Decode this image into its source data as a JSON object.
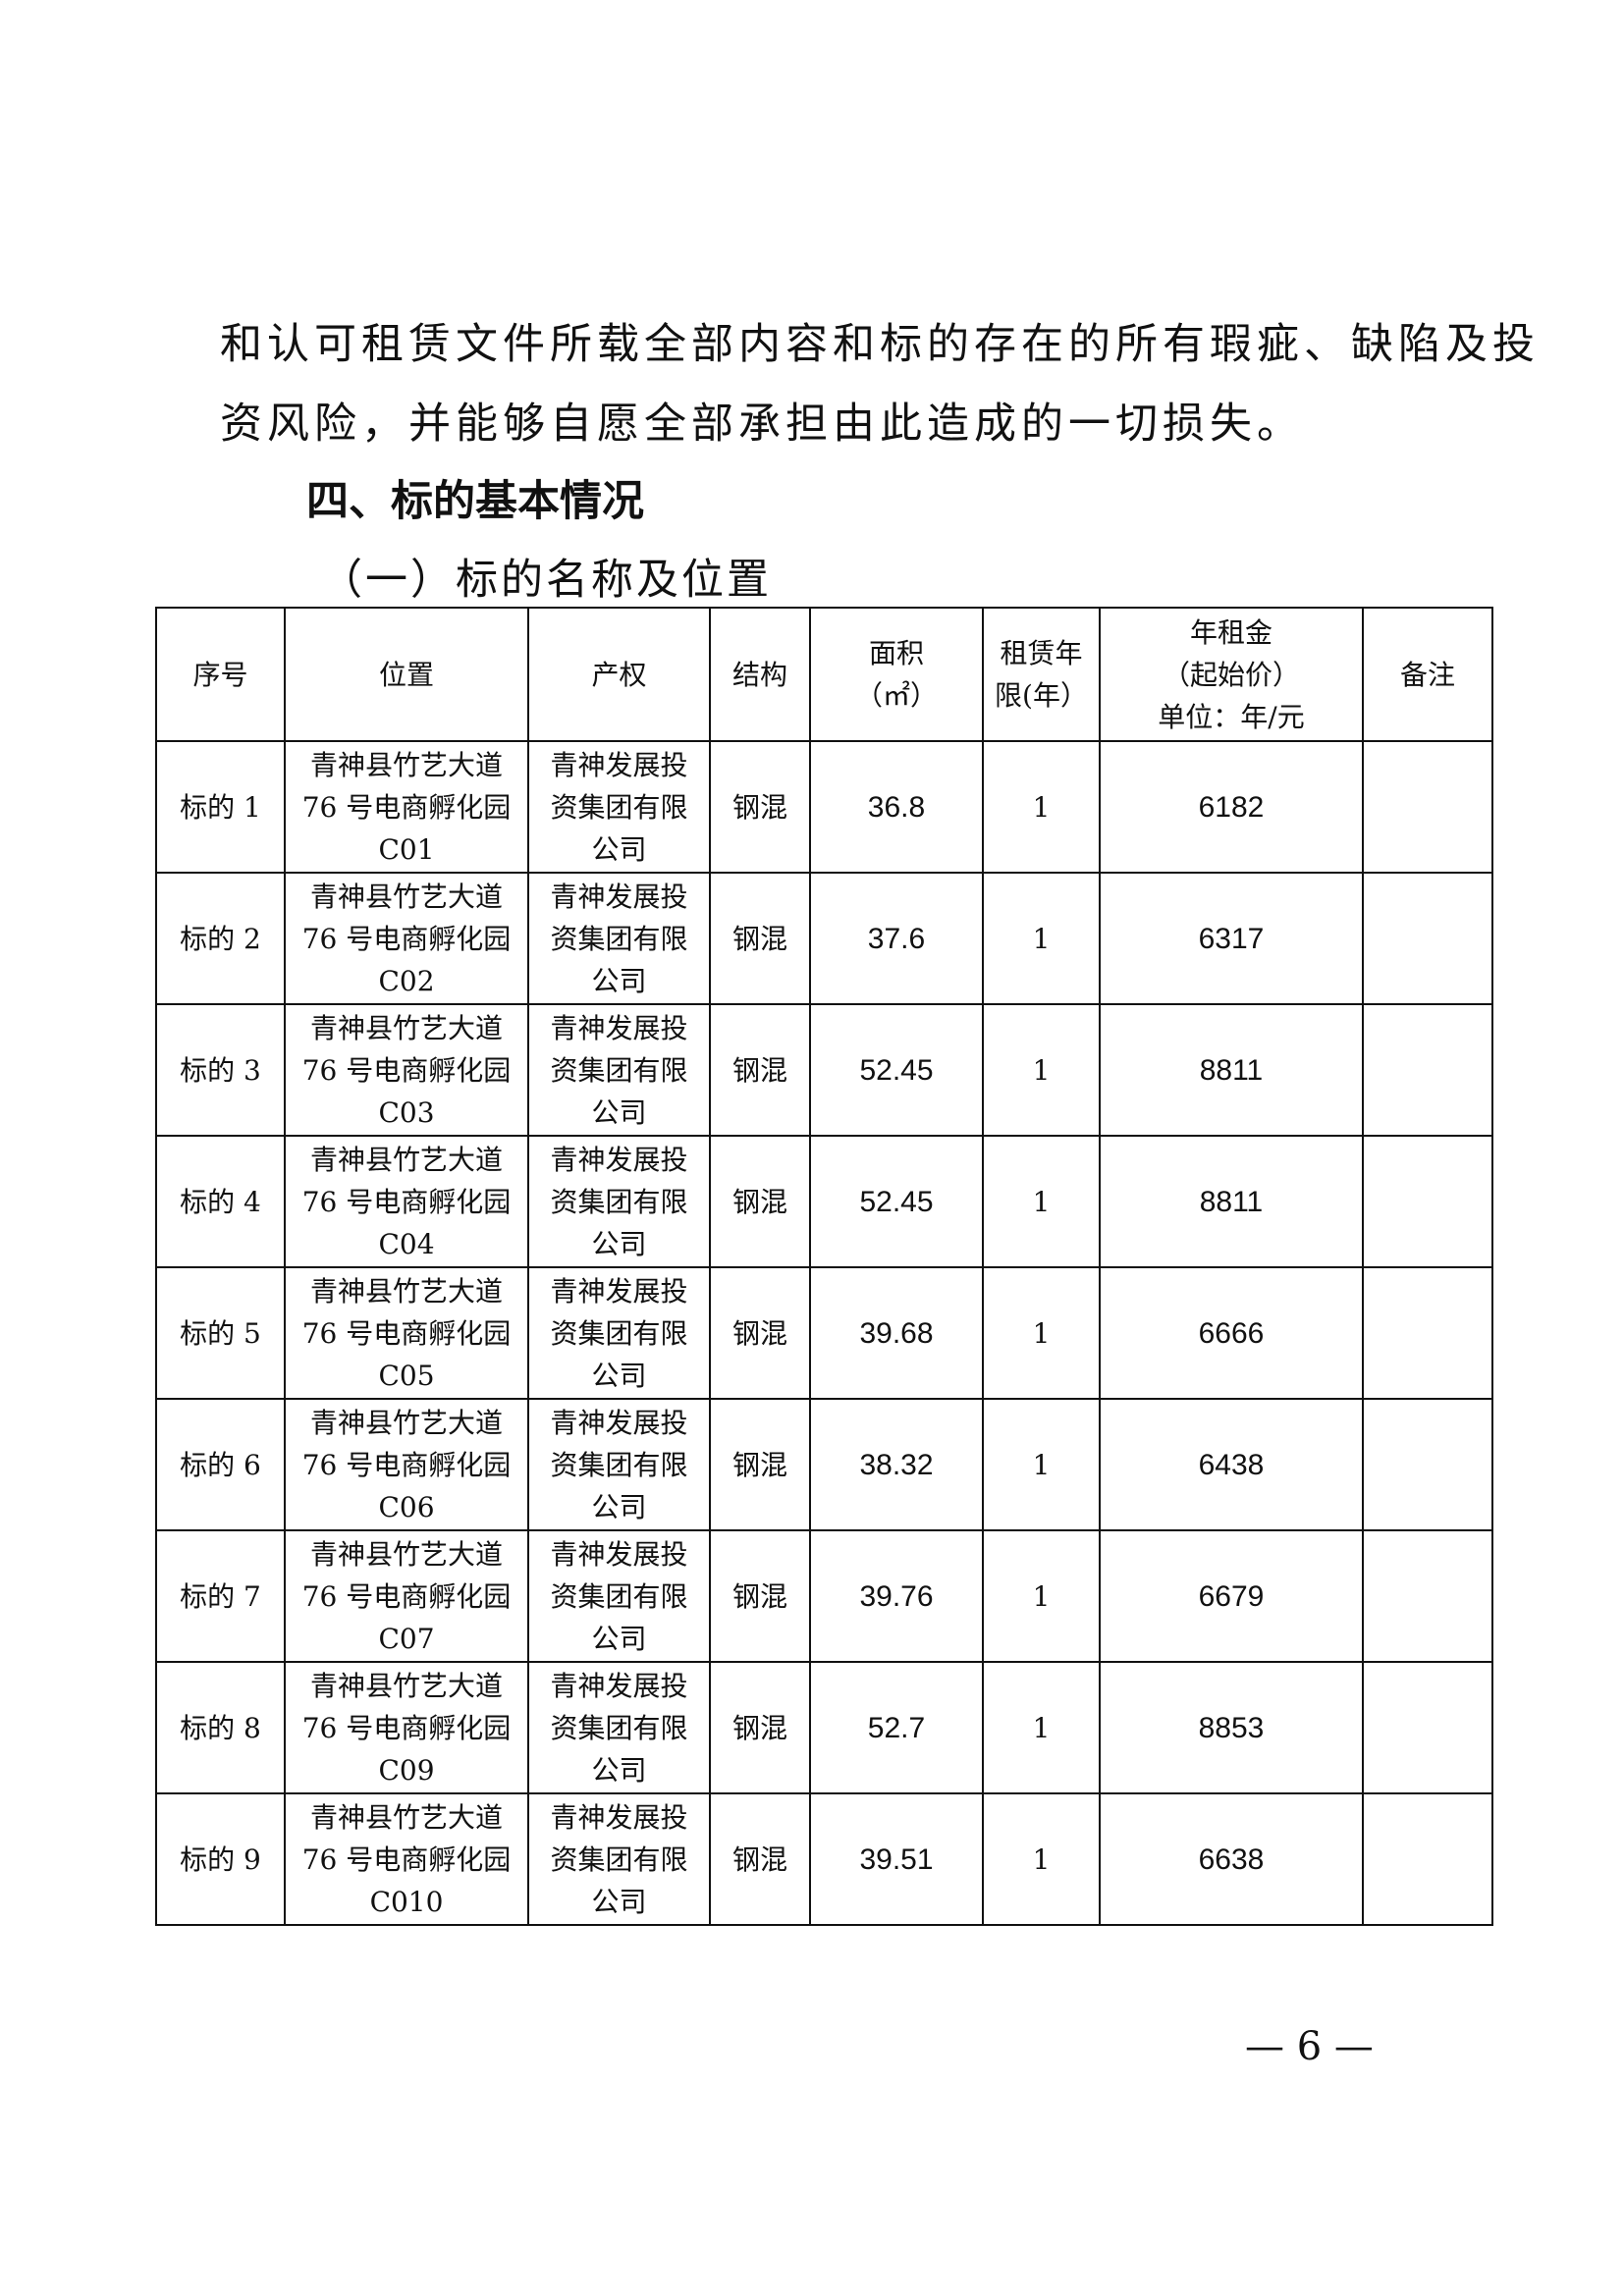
{
  "paragraph": {
    "line1": "和认可租赁文件所载全部内容和标的存在的所有瑕疵、缺陷及投",
    "line2": "资风险，并能够自愿全部承担由此造成的一切损失。"
  },
  "section_heading": "四、标的基本情况",
  "subsection_heading": "（一）标的名称及位置",
  "table": {
    "headers": [
      "序号",
      "位置",
      "产权",
      "结构",
      "面积（㎡）",
      "租赁年限(年）",
      "年租金（起始价）单位：年/元",
      "备注"
    ],
    "header_lines": {
      "area": [
        "面积",
        "（㎡）"
      ],
      "term": [
        "租赁年",
        "限(年）"
      ],
      "rent": [
        "年租金",
        "（起始价）",
        "单位：年/元"
      ]
    },
    "rows": [
      {
        "id": "标的 1",
        "loc": [
          "青神县竹艺大道",
          "76 号电商孵化园",
          "C01"
        ],
        "owner": [
          "青神发展投",
          "资集团有限",
          "公司"
        ],
        "structure": "钢混",
        "area": "36.8",
        "term": "1",
        "rent": "6182",
        "note": ""
      },
      {
        "id": "标的 2",
        "loc": [
          "青神县竹艺大道",
          "76 号电商孵化园",
          "C02"
        ],
        "owner": [
          "青神发展投",
          "资集团有限",
          "公司"
        ],
        "structure": "钢混",
        "area": "37.6",
        "term": "1",
        "rent": "6317",
        "note": ""
      },
      {
        "id": "标的 3",
        "loc": [
          "青神县竹艺大道",
          "76 号电商孵化园",
          "C03"
        ],
        "owner": [
          "青神发展投",
          "资集团有限",
          "公司"
        ],
        "structure": "钢混",
        "area": "52.45",
        "term": "1",
        "rent": "8811",
        "note": ""
      },
      {
        "id": "标的 4",
        "loc": [
          "青神县竹艺大道",
          "76 号电商孵化园",
          "C04"
        ],
        "owner": [
          "青神发展投",
          "资集团有限",
          "公司"
        ],
        "structure": "钢混",
        "area": "52.45",
        "term": "1",
        "rent": "8811",
        "note": ""
      },
      {
        "id": "标的 5",
        "loc": [
          "青神县竹艺大道",
          "76 号电商孵化园",
          "C05"
        ],
        "owner": [
          "青神发展投",
          "资集团有限",
          "公司"
        ],
        "structure": "钢混",
        "area": "39.68",
        "term": "1",
        "rent": "6666",
        "note": ""
      },
      {
        "id": "标的 6",
        "loc": [
          "青神县竹艺大道",
          "76 号电商孵化园",
          "C06"
        ],
        "owner": [
          "青神发展投",
          "资集团有限",
          "公司"
        ],
        "structure": "钢混",
        "area": "38.32",
        "term": "1",
        "rent": "6438",
        "note": ""
      },
      {
        "id": "标的 7",
        "loc": [
          "青神县竹艺大道",
          "76 号电商孵化园",
          "C07"
        ],
        "owner": [
          "青神发展投",
          "资集团有限",
          "公司"
        ],
        "structure": "钢混",
        "area": "39.76",
        "term": "1",
        "rent": "6679",
        "note": ""
      },
      {
        "id": "标的 8",
        "loc": [
          "青神县竹艺大道",
          "76 号电商孵化园",
          "C09"
        ],
        "owner": [
          "青神发展投",
          "资集团有限",
          "公司"
        ],
        "structure": "钢混",
        "area": "52.7",
        "term": "1",
        "rent": "8853",
        "note": ""
      },
      {
        "id": "标的 9",
        "loc": [
          "青神县竹艺大道",
          "76 号电商孵化园",
          "C010"
        ],
        "owner": [
          "青神发展投",
          "资集团有限",
          "公司"
        ],
        "structure": "钢混",
        "area": "39.51",
        "term": "1",
        "rent": "6638",
        "note": ""
      }
    ]
  },
  "page_number": "— 6 —"
}
